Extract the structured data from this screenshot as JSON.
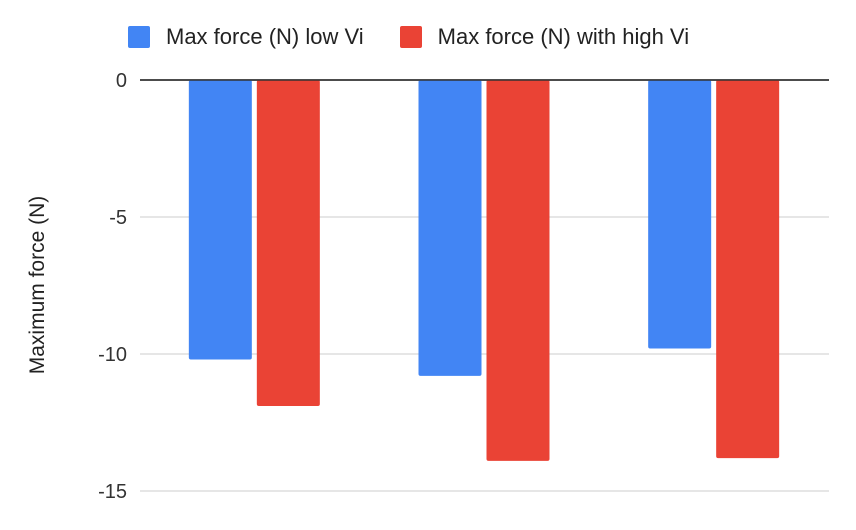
{
  "chart_data": {
    "type": "bar",
    "categories": [
      "",
      "",
      ""
    ],
    "series": [
      {
        "name": "Max force (N) low Vi",
        "color": "#4285F4",
        "values": [
          -10.2,
          -10.8,
          -9.8
        ]
      },
      {
        "name": "Max force (N) with high Vi",
        "color": "#EA4335",
        "values": [
          -11.9,
          -13.9,
          -13.8
        ]
      }
    ],
    "title": "",
    "xlabel": "",
    "ylabel": "Maximum force (N)",
    "ylim": [
      -15,
      0
    ],
    "yticks": [
      0,
      -5,
      -10,
      -15
    ],
    "ytick_labels": [
      "0",
      "-5",
      "-10",
      "-15"
    ],
    "grid": true,
    "legend_position": "top"
  }
}
